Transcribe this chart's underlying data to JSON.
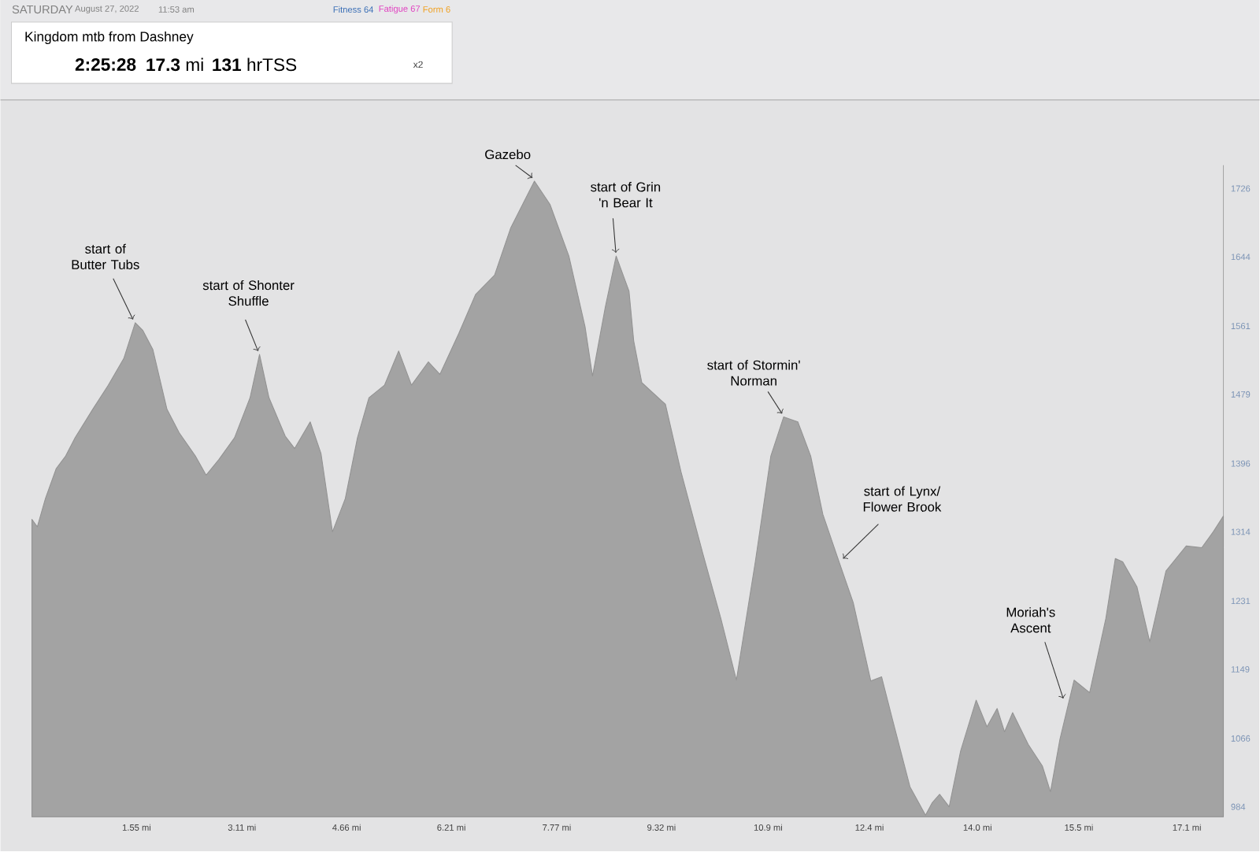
{
  "chart_data": {
    "type": "area",
    "title": "Kingdom mtb from Dashney",
    "x": [
      0,
      0.08,
      0.2,
      0.36,
      0.5,
      0.64,
      0.9,
      1.13,
      1.36,
      1.53,
      1.64,
      1.79,
      2.0,
      2.18,
      2.42,
      2.58,
      2.77,
      3.0,
      3.23,
      3.37,
      3.51,
      3.75,
      3.89,
      4.12,
      4.28,
      4.45,
      4.64,
      4.82,
      4.99,
      5.22,
      5.43,
      5.62,
      5.87,
      6.04,
      6.32,
      6.57,
      6.85,
      7.09,
      7.44,
      7.67,
      7.95,
      8.19,
      8.3,
      8.49,
      8.65,
      8.84,
      8.91,
      9.03,
      9.38,
      9.61,
      9.94,
      10.2,
      10.43,
      10.71,
      10.94,
      11.13,
      11.34,
      11.53,
      11.71,
      11.95,
      12.16,
      12.42,
      12.58,
      12.74,
      13.0,
      13.23,
      13.33,
      13.44,
      13.58,
      13.75,
      13.98,
      14.14,
      14.29,
      14.4,
      14.52,
      14.75,
      14.96,
      15.08,
      15.22,
      15.43,
      15.66,
      15.9,
      16.04,
      16.15,
      16.36,
      16.55,
      16.79,
      17.09,
      17.32,
      17.49,
      17.64
    ],
    "values": [
      1329,
      1320,
      1354,
      1390,
      1405,
      1427,
      1461,
      1490,
      1522,
      1565,
      1556,
      1533,
      1461,
      1433,
      1405,
      1382,
      1401,
      1427,
      1475,
      1527,
      1475,
      1429,
      1414,
      1446,
      1408,
      1314,
      1354,
      1427,
      1475,
      1490,
      1531,
      1490,
      1518,
      1503,
      1552,
      1599,
      1622,
      1679,
      1735,
      1707,
      1645,
      1560,
      1501,
      1584,
      1645,
      1603,
      1543,
      1493,
      1467,
      1386,
      1286,
      1210,
      1136,
      1278,
      1405,
      1452,
      1446,
      1405,
      1335,
      1278,
      1229,
      1135,
      1140,
      1089,
      1008,
      974,
      989,
      999,
      984,
      1051,
      1112,
      1080,
      1102,
      1074,
      1097,
      1059,
      1033,
      1002,
      1065,
      1136,
      1121,
      1210,
      1282,
      1278,
      1248,
      1182,
      1267,
      1297,
      1295,
      1314,
      1333
    ],
    "color": "#a3a3a3",
    "xlim": [
      0,
      17.64
    ],
    "xticks": [
      {
        "value": 1.55,
        "label": "1.55 mi"
      },
      {
        "value": 3.11,
        "label": "3.11 mi"
      },
      {
        "value": 4.66,
        "label": "4.66 mi"
      },
      {
        "value": 6.21,
        "label": "6.21 mi"
      },
      {
        "value": 7.77,
        "label": "7.77 mi"
      },
      {
        "value": 9.32,
        "label": "9.32 mi"
      },
      {
        "value": 10.9,
        "label": "10.9 mi"
      },
      {
        "value": 12.4,
        "label": "12.4 mi"
      },
      {
        "value": 14.0,
        "label": "14.0 mi"
      },
      {
        "value": 15.5,
        "label": "15.5 mi"
      },
      {
        "value": 17.1,
        "label": "17.1 mi"
      }
    ],
    "ylim": [
      972,
      1754
    ],
    "yticks": [
      984,
      1066,
      1149,
      1231,
      1314,
      1396,
      1479,
      1561,
      1644,
      1726
    ],
    "annotations": [
      "SATURDAY",
      "August 27, 2022",
      "11:53 am",
      "Fitness 64",
      "Fatigue 67",
      "Form 6",
      "2:25:28",
      "**17.3** mi",
      "**131** hrTSS",
      "x2",
      {
        "text": "start of Butter Tubs",
        "x": 1.53,
        "y": 1565
      },
      {
        "text": "start of Shonter Shuffle",
        "x": 3.37,
        "y": 1527
      },
      {
        "text": "Gazebo",
        "x": 7.44,
        "y": 1735
      },
      {
        "text": "start of Grin 'n Bear It",
        "x": 8.65,
        "y": 1645
      },
      {
        "text": "start of Stormin' Norman",
        "x": 11.13,
        "y": 1452
      },
      {
        "text": "start of Lynx/ Flower Brook",
        "x": 11.95,
        "y": 1278
      },
      {
        "text": "Moriah's Ascent",
        "x": 15.3,
        "y": 1110
      }
    ]
  }
}
